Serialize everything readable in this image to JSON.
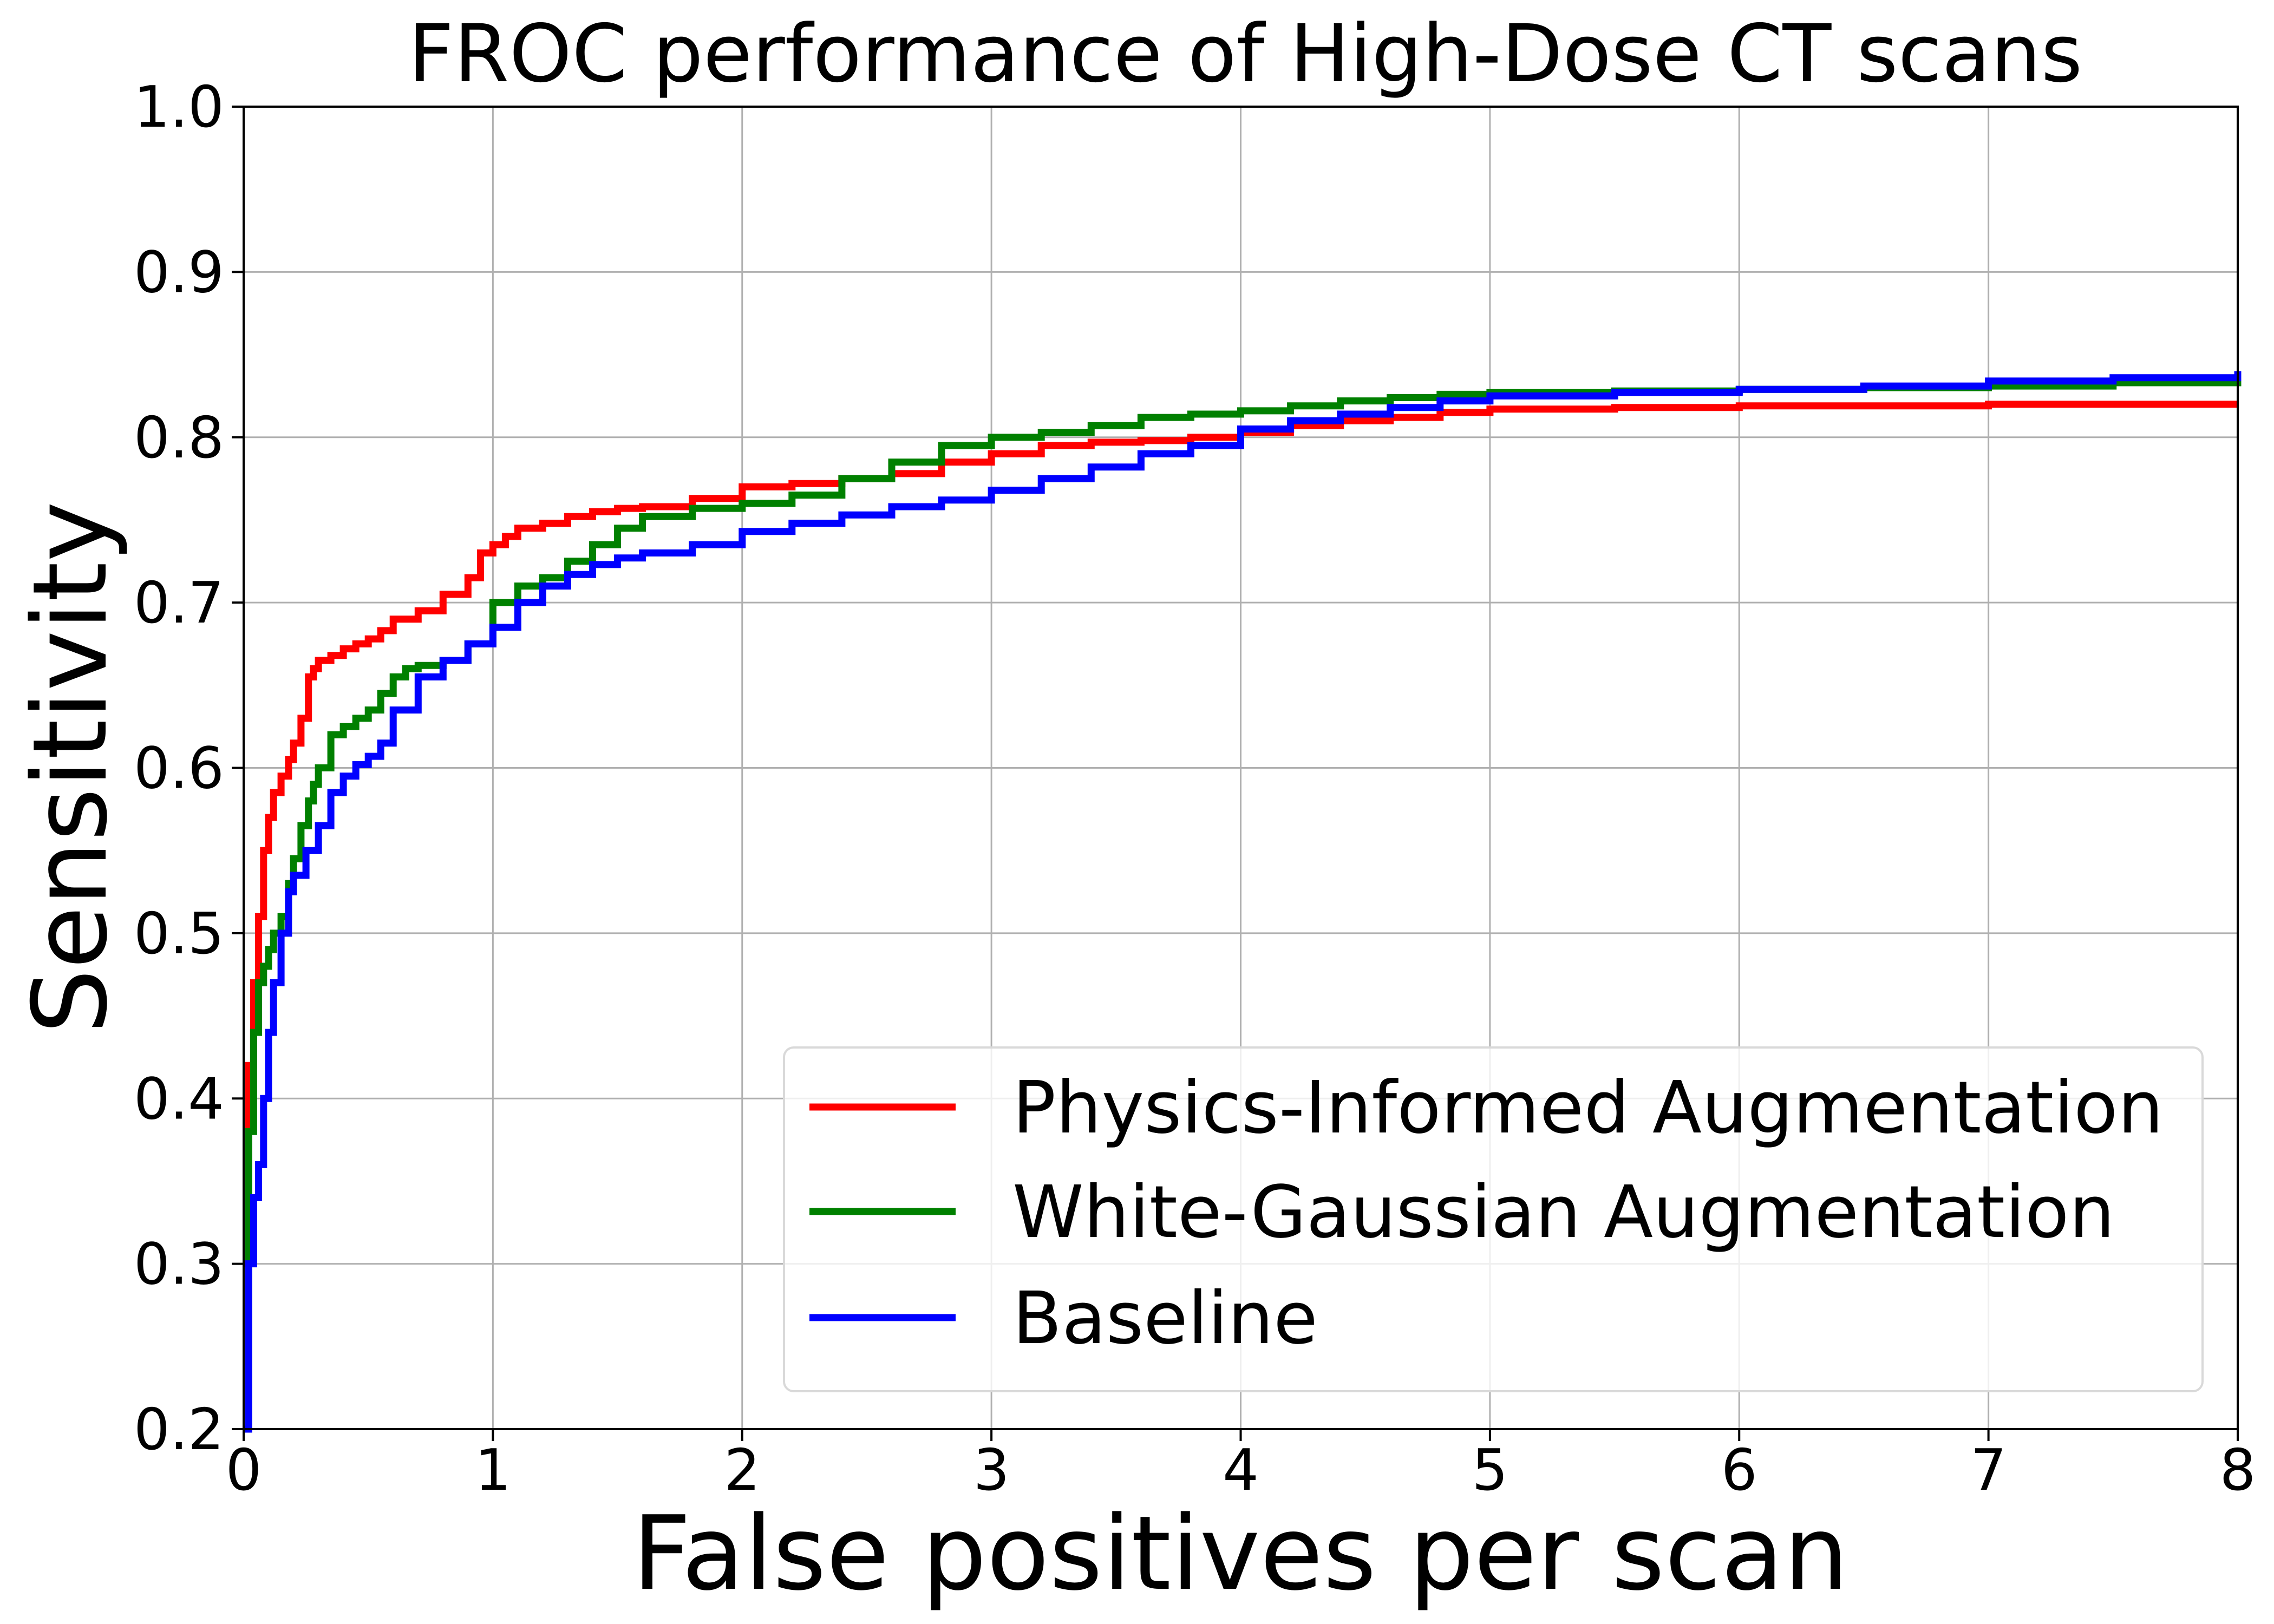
{
  "chart_data": {
    "type": "line",
    "title": "FROC performance of High-Dose CT scans",
    "xlabel": "False positives per scan",
    "ylabel": "Sensitivity",
    "xlim": [
      0,
      8
    ],
    "ylim": [
      0.2,
      1.0
    ],
    "xticks": [
      "0",
      "1",
      "2",
      "3",
      "4",
      "5",
      "6",
      "7",
      "8"
    ],
    "yticks": [
      "0.2",
      "0.3",
      "0.4",
      "0.5",
      "0.6",
      "0.7",
      "0.8",
      "0.9",
      "1.0"
    ],
    "grid": true,
    "legend_position": "lower-right",
    "series": [
      {
        "name": "Physics-Informed Augmentation",
        "color": "#ff0000",
        "x": [
          0,
          0.02,
          0.04,
          0.06,
          0.08,
          0.1,
          0.12,
          0.15,
          0.18,
          0.2,
          0.23,
          0.26,
          0.28,
          0.3,
          0.35,
          0.4,
          0.45,
          0.5,
          0.55,
          0.6,
          0.7,
          0.8,
          0.9,
          0.95,
          1.0,
          1.05,
          1.1,
          1.2,
          1.3,
          1.4,
          1.5,
          1.6,
          1.8,
          2.0,
          2.2,
          2.4,
          2.6,
          2.8,
          3.0,
          3.2,
          3.4,
          3.6,
          3.8,
          4.0,
          4.2,
          4.4,
          4.6,
          4.8,
          5.0,
          5.5,
          6.0,
          6.5,
          7.0,
          7.5,
          8.0
        ],
        "y": [
          0.3,
          0.42,
          0.47,
          0.51,
          0.55,
          0.57,
          0.585,
          0.595,
          0.605,
          0.615,
          0.63,
          0.655,
          0.66,
          0.665,
          0.668,
          0.672,
          0.675,
          0.678,
          0.683,
          0.69,
          0.695,
          0.705,
          0.715,
          0.73,
          0.735,
          0.74,
          0.745,
          0.748,
          0.752,
          0.755,
          0.757,
          0.758,
          0.763,
          0.77,
          0.772,
          0.775,
          0.778,
          0.785,
          0.79,
          0.795,
          0.797,
          0.798,
          0.8,
          0.803,
          0.807,
          0.81,
          0.812,
          0.815,
          0.817,
          0.818,
          0.819,
          0.819,
          0.82,
          0.82,
          0.82
        ]
      },
      {
        "name": "White-Gaussian Augmentation",
        "color": "#008000",
        "x": [
          0,
          0.02,
          0.04,
          0.06,
          0.08,
          0.1,
          0.12,
          0.15,
          0.18,
          0.2,
          0.23,
          0.26,
          0.28,
          0.3,
          0.35,
          0.4,
          0.45,
          0.5,
          0.55,
          0.6,
          0.65,
          0.7,
          0.8,
          0.9,
          1.0,
          1.1,
          1.2,
          1.3,
          1.4,
          1.5,
          1.6,
          1.8,
          2.0,
          2.2,
          2.4,
          2.6,
          2.8,
          3.0,
          3.2,
          3.4,
          3.6,
          3.8,
          4.0,
          4.2,
          4.4,
          4.6,
          4.8,
          5.0,
          5.5,
          6.0,
          6.5,
          7.0,
          7.5,
          8.0
        ],
        "y": [
          0.2,
          0.38,
          0.44,
          0.47,
          0.48,
          0.49,
          0.5,
          0.51,
          0.53,
          0.545,
          0.565,
          0.58,
          0.59,
          0.6,
          0.62,
          0.625,
          0.63,
          0.635,
          0.645,
          0.655,
          0.66,
          0.662,
          0.665,
          0.675,
          0.7,
          0.71,
          0.715,
          0.725,
          0.735,
          0.745,
          0.752,
          0.757,
          0.76,
          0.765,
          0.775,
          0.785,
          0.795,
          0.8,
          0.803,
          0.807,
          0.812,
          0.814,
          0.816,
          0.819,
          0.822,
          0.824,
          0.826,
          0.827,
          0.828,
          0.829,
          0.83,
          0.831,
          0.833,
          0.837
        ]
      },
      {
        "name": "Baseline",
        "color": "#0000ff",
        "x": [
          0,
          0.02,
          0.04,
          0.06,
          0.08,
          0.1,
          0.12,
          0.15,
          0.18,
          0.2,
          0.25,
          0.3,
          0.35,
          0.4,
          0.45,
          0.5,
          0.55,
          0.6,
          0.7,
          0.8,
          0.9,
          1.0,
          1.1,
          1.2,
          1.3,
          1.4,
          1.5,
          1.6,
          1.8,
          2.0,
          2.2,
          2.4,
          2.6,
          2.8,
          3.0,
          3.2,
          3.4,
          3.6,
          3.8,
          4.0,
          4.2,
          4.4,
          4.6,
          4.8,
          5.0,
          5.5,
          6.0,
          6.5,
          7.0,
          7.5,
          8.0
        ],
        "y": [
          0.2,
          0.3,
          0.34,
          0.36,
          0.4,
          0.44,
          0.47,
          0.5,
          0.525,
          0.535,
          0.55,
          0.565,
          0.585,
          0.595,
          0.602,
          0.607,
          0.615,
          0.635,
          0.655,
          0.665,
          0.675,
          0.685,
          0.7,
          0.71,
          0.717,
          0.723,
          0.727,
          0.73,
          0.735,
          0.743,
          0.748,
          0.753,
          0.758,
          0.762,
          0.768,
          0.775,
          0.782,
          0.79,
          0.795,
          0.805,
          0.81,
          0.814,
          0.818,
          0.822,
          0.825,
          0.827,
          0.829,
          0.831,
          0.834,
          0.836,
          0.84
        ]
      }
    ]
  }
}
